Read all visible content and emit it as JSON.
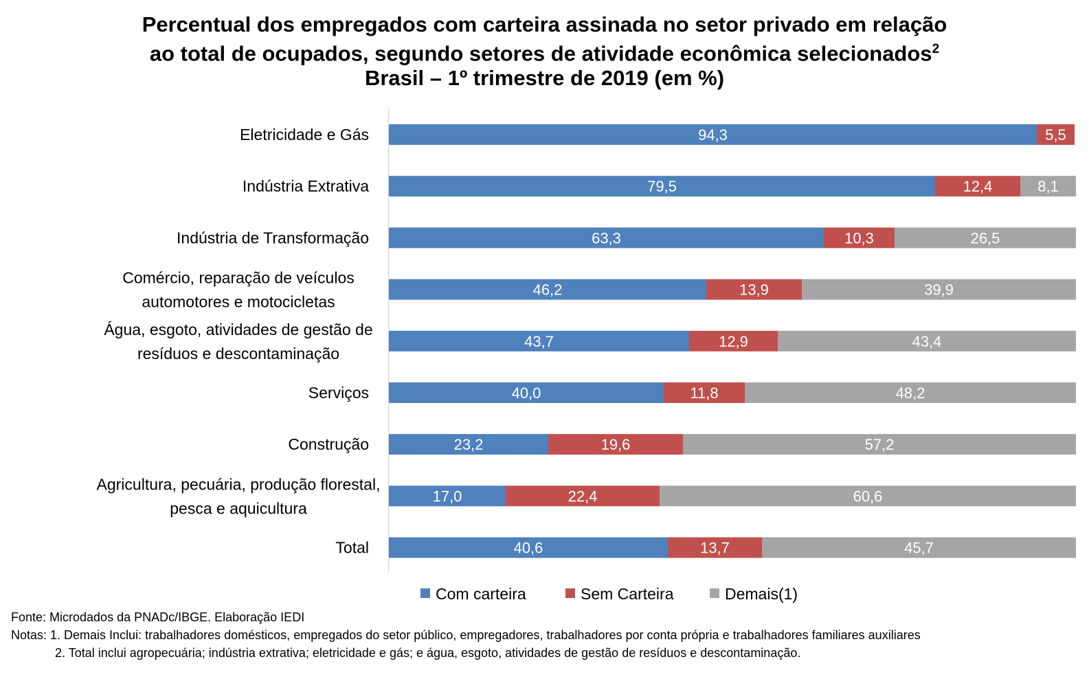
{
  "title": {
    "line1": "Percentual dos empregados com carteira assinada no setor privado em relação",
    "line2": "ao total de ocupados, segundo setores de atividade econômica selecionados",
    "line2_sup": "2",
    "line3": "Brasil – 1º trimestre de 2019 (em %)"
  },
  "chart_data": {
    "type": "bar",
    "orientation": "horizontal",
    "stacked": true,
    "xlim": [
      0,
      100
    ],
    "grid": false,
    "legend_position": "bottom",
    "categories": [
      [
        "Eletricidade e Gás"
      ],
      [
        "Indústria Extrativa"
      ],
      [
        "Indústria de Transformação"
      ],
      [
        "Comércio, reparação de veículos",
        "automotores e motocicletas"
      ],
      [
        "Água, esgoto, atividades de gestão de",
        "resíduos e descontaminação"
      ],
      [
        "Serviços"
      ],
      [
        "Construção"
      ],
      [
        "Agricultura, pecuária, produção florestal,",
        "pesca e aquicultura"
      ],
      [
        "Total"
      ]
    ],
    "series": [
      {
        "name": "Com carteira",
        "color": "#4F81BD",
        "values": [
          94.3,
          79.5,
          63.3,
          46.2,
          43.7,
          40.0,
          23.2,
          17.0,
          40.6
        ],
        "labels": [
          "94,3",
          "79,5",
          "63,3",
          "46,2",
          "43,7",
          "40,0",
          "23,2",
          "17,0",
          "40,6"
        ]
      },
      {
        "name": "Sem Carteira",
        "color": "#C0504D",
        "values": [
          5.5,
          12.4,
          10.3,
          13.9,
          12.9,
          11.8,
          19.6,
          22.4,
          13.7
        ],
        "labels": [
          "5,5",
          "12,4",
          "10,3",
          "13,9",
          "12,9",
          "11,8",
          "19,6",
          "22,4",
          "13,7"
        ]
      },
      {
        "name": "Demais(1)",
        "color": "#A5A5A5",
        "values": [
          null,
          8.1,
          26.5,
          39.9,
          43.4,
          48.2,
          57.2,
          60.6,
          45.7
        ],
        "labels": [
          "",
          "8,1",
          "26,5",
          "39,9",
          "43,4",
          "48,2",
          "57,2",
          "60,6",
          "45,7"
        ]
      }
    ]
  },
  "notes": {
    "source": "Fonte: Microdados da PNADc/IBGE. Elaboração IEDI",
    "note1": "Notas: 1. Demais Inclui: trabalhadores domésticos, empregados do setor público, empregadores, trabalhadores por conta própria e trabalhadores familiares auxiliares",
    "note2": "2. Total inclui agropecuária; indústria extrativa; eletricidade e gás; e água, esgoto, atividades de gestão de resíduos e descontaminação."
  }
}
